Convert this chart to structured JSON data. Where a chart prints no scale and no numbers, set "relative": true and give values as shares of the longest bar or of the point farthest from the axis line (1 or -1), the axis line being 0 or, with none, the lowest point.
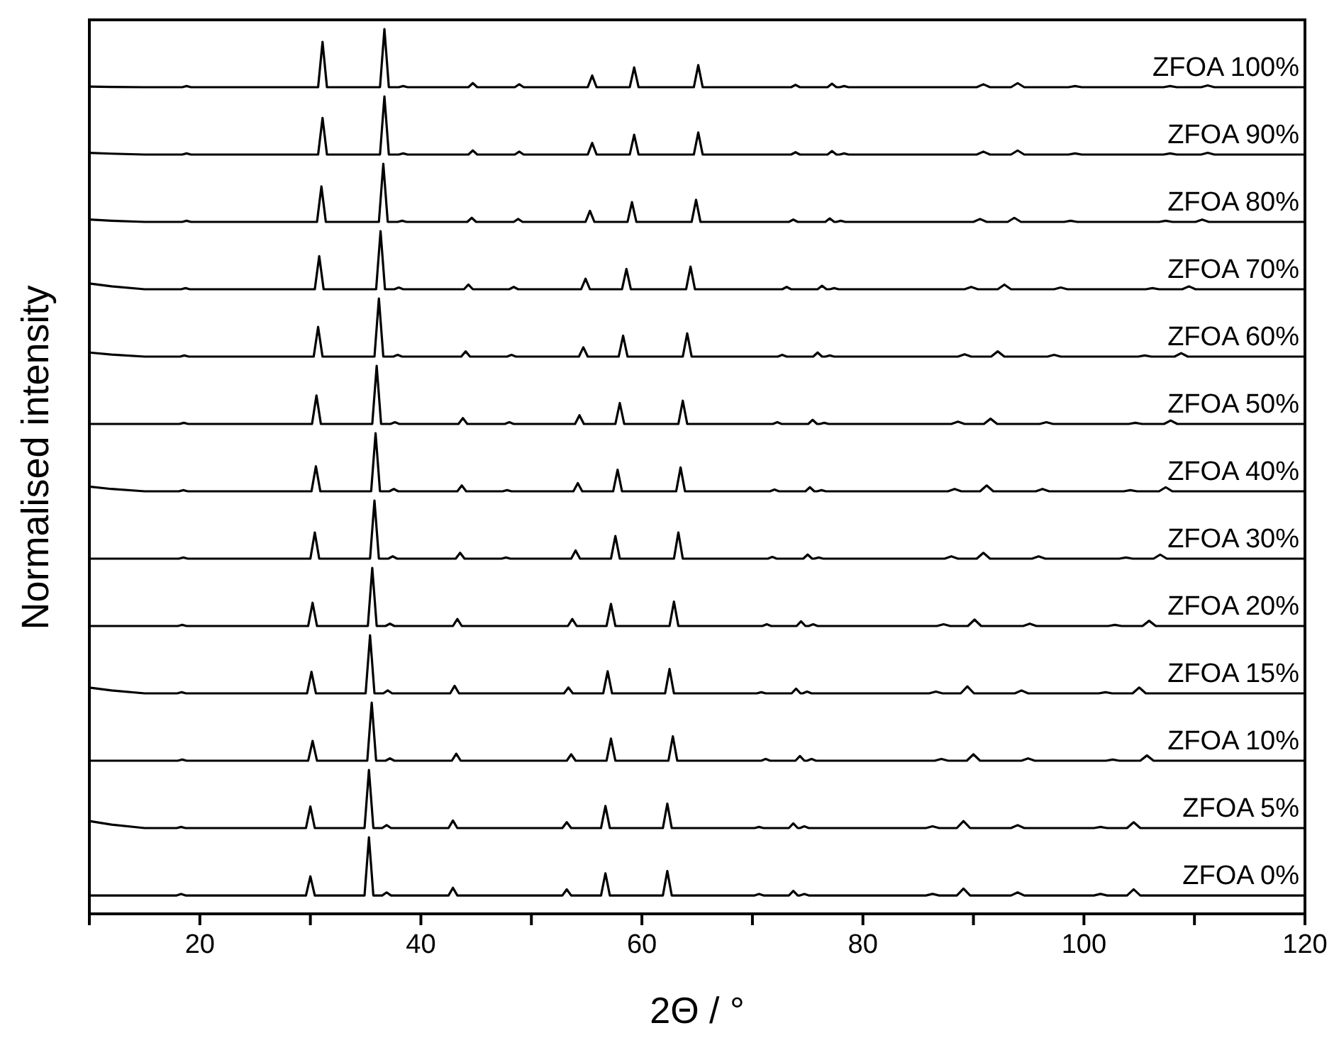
{
  "chart_data": [
    {
      "type": "line",
      "relative": true,
      "xlim": [
        10,
        120
      ],
      "tick_labels": false,
      "series": [
        {
          "name": "ZFOA 100%",
          "color": "#000000",
          "x": [
            10,
            12,
            15,
            18.4,
            18.8,
            19.2,
            30.7,
            31.1,
            31.5,
            36.3,
            36.7,
            37.1,
            38.0,
            38.4,
            38.8,
            44.3,
            44.7,
            45.1,
            48.5,
            48.9,
            49.3,
            55.1,
            55.5,
            55.9,
            58.9,
            59.3,
            59.7,
            64.7,
            65.1,
            65.5,
            73.5,
            73.9,
            74.3,
            76.8,
            77.2,
            77.6,
            77.9,
            78.3,
            78.7,
            90.3,
            90.9,
            91.5,
            93.4,
            94.0,
            94.6,
            98.6,
            99.2,
            99.8,
            107.2,
            107.8,
            108.4,
            110.6,
            111.2,
            111.8,
            120
          ],
          "values": [
            0.01,
            0.005,
            0,
            0,
            0.02,
            0,
            0,
            0.78,
            0,
            0,
            1,
            0,
            0,
            0.02,
            0,
            0,
            0.07,
            0,
            0,
            0.05,
            0,
            0,
            0.2,
            0,
            0,
            0.34,
            0,
            0,
            0.38,
            0,
            0,
            0.04,
            0,
            0,
            0.06,
            0,
            0,
            0.02,
            0,
            0,
            0.05,
            0,
            0,
            0.07,
            0,
            0,
            0.02,
            0,
            0,
            0.02,
            0,
            0,
            0.03,
            0,
            0
          ]
        }
      ]
    },
    {
      "type": "line",
      "relative": true,
      "xlim": [
        10,
        120
      ],
      "tick_labels": false,
      "series": [
        {
          "name": "ZFOA 90%",
          "color": "#000000",
          "x": [
            10,
            12,
            15,
            18.4,
            18.8,
            19.2,
            30.7,
            31.1,
            31.5,
            36.3,
            36.7,
            37.1,
            38.0,
            38.4,
            38.8,
            44.3,
            44.7,
            45.1,
            48.5,
            48.9,
            49.3,
            55.1,
            55.5,
            55.9,
            58.9,
            59.3,
            59.7,
            64.7,
            65.1,
            65.5,
            73.5,
            73.9,
            74.3,
            76.8,
            77.2,
            77.6,
            77.9,
            78.3,
            78.7,
            90.3,
            90.9,
            91.5,
            93.4,
            94.0,
            94.6,
            98.6,
            99.2,
            99.8,
            107.2,
            107.8,
            108.4,
            110.6,
            111.2,
            111.8,
            120
          ],
          "values": [
            0.03,
            0.015,
            0,
            0,
            0.02,
            0,
            0,
            0.63,
            0,
            0,
            1,
            0,
            0,
            0.02,
            0,
            0,
            0.07,
            0,
            0,
            0.05,
            0,
            0,
            0.2,
            0,
            0,
            0.34,
            0,
            0,
            0.38,
            0,
            0,
            0.04,
            0,
            0,
            0.06,
            0,
            0,
            0.02,
            0,
            0,
            0.05,
            0,
            0,
            0.07,
            0,
            0,
            0.02,
            0,
            0,
            0.02,
            0,
            0,
            0.03,
            0,
            0
          ]
        }
      ]
    },
    {
      "type": "line",
      "relative": true,
      "xlim": [
        10,
        120
      ],
      "tick_labels": false,
      "series": [
        {
          "name": "ZFOA 80%",
          "color": "#000000",
          "x": [
            10,
            12,
            15,
            18.4,
            18.8,
            19.2,
            30.6,
            31.0,
            31.4,
            36.2,
            36.6,
            37.0,
            37.9,
            38.3,
            38.7,
            44.2,
            44.6,
            45.0,
            48.4,
            48.8,
            49.2,
            54.9,
            55.3,
            55.7,
            58.7,
            59.1,
            59.5,
            64.5,
            64.9,
            65.3,
            73.3,
            73.7,
            74.1,
            76.6,
            77.0,
            77.4,
            77.6,
            78.0,
            78.4,
            90.0,
            90.6,
            91.2,
            93.1,
            93.7,
            94.3,
            98.2,
            98.8,
            99.4,
            106.8,
            107.4,
            108.0,
            110.1,
            110.7,
            111.3,
            120
          ],
          "values": [
            0.04,
            0.02,
            0,
            0,
            0.02,
            0,
            0,
            0.61,
            0,
            0,
            1,
            0,
            0,
            0.02,
            0,
            0,
            0.07,
            0,
            0,
            0.05,
            0,
            0,
            0.19,
            0,
            0,
            0.34,
            0,
            0,
            0.38,
            0,
            0,
            0.04,
            0,
            0,
            0.06,
            0,
            0,
            0.02,
            0,
            0,
            0.05,
            0,
            0,
            0.07,
            0,
            0,
            0.02,
            0,
            0,
            0.02,
            0,
            0,
            0.04,
            0,
            0
          ]
        }
      ]
    },
    {
      "type": "line",
      "relative": true,
      "xlim": [
        10,
        120
      ],
      "tick_labels": false,
      "series": [
        {
          "name": "ZFOA 70%",
          "color": "#000000",
          "x": [
            10,
            12,
            15,
            18.3,
            18.7,
            19.1,
            30.4,
            30.8,
            31.2,
            35.95,
            36.35,
            36.75,
            37.6,
            38.0,
            38.4,
            43.9,
            44.3,
            44.7,
            48.0,
            48.4,
            48.8,
            54.5,
            54.9,
            55.3,
            58.2,
            58.6,
            59.0,
            64.0,
            64.4,
            64.8,
            72.7,
            73.1,
            73.5,
            75.9,
            76.3,
            76.7,
            77.0,
            77.4,
            77.8,
            89.2,
            89.8,
            90.4,
            92.2,
            92.8,
            93.4,
            97.3,
            97.9,
            98.5,
            105.6,
            106.2,
            106.8,
            108.9,
            109.5,
            110.1,
            120
          ],
          "values": [
            0.1,
            0.05,
            0,
            0,
            0.02,
            0,
            0,
            0.57,
            0,
            0,
            1,
            0,
            0,
            0.03,
            0,
            0,
            0.08,
            0,
            0,
            0.04,
            0,
            0,
            0.18,
            0,
            0,
            0.35,
            0,
            0,
            0.39,
            0,
            0,
            0.04,
            0,
            0,
            0.06,
            0,
            0,
            0.02,
            0,
            0,
            0.04,
            0,
            0,
            0.08,
            0,
            0,
            0.03,
            0,
            0,
            0.02,
            0,
            0,
            0.05,
            0,
            0
          ]
        }
      ]
    },
    {
      "type": "line",
      "relative": true,
      "xlim": [
        10,
        120
      ],
      "tick_labels": false,
      "series": [
        {
          "name": "ZFOA 60%",
          "color": "#000000",
          "x": [
            10,
            12,
            15,
            18.2,
            18.6,
            19.0,
            30.3,
            30.7,
            31.1,
            35.8,
            36.2,
            36.6,
            37.5,
            37.9,
            38.3,
            43.65,
            44.05,
            44.45,
            47.8,
            48.2,
            48.6,
            54.3,
            54.7,
            55.1,
            57.9,
            58.3,
            58.7,
            63.7,
            64.1,
            64.5,
            72.3,
            72.7,
            73.1,
            75.5,
            75.9,
            76.3,
            76.6,
            77.0,
            77.4,
            88.6,
            89.2,
            89.8,
            91.6,
            92.2,
            92.8,
            96.7,
            97.3,
            97.9,
            104.9,
            105.5,
            106.1,
            108.2,
            108.8,
            109.4,
            120
          ],
          "values": [
            0.07,
            0.035,
            0,
            0,
            0.02,
            0,
            0,
            0.51,
            0,
            0,
            1,
            0,
            0,
            0.03,
            0,
            0,
            0.09,
            0,
            0,
            0.03,
            0,
            0,
            0.16,
            0,
            0,
            0.36,
            0,
            0,
            0.4,
            0,
            0,
            0.03,
            0,
            0,
            0.07,
            0,
            0,
            0.02,
            0,
            0,
            0.04,
            0,
            0,
            0.09,
            0,
            0,
            0.03,
            0,
            0,
            0.02,
            0,
            0,
            0.06,
            0,
            0
          ]
        }
      ]
    },
    {
      "type": "line",
      "relative": true,
      "xlim": [
        10,
        120
      ],
      "tick_labels": false,
      "series": [
        {
          "name": "ZFOA 50%",
          "color": "#000000",
          "x": [
            10,
            18.15,
            18.55,
            18.95,
            30.15,
            30.55,
            30.95,
            35.6,
            36.0,
            36.4,
            37.25,
            37.65,
            38.05,
            43.4,
            43.8,
            44.2,
            47.6,
            48.0,
            48.4,
            53.95,
            54.35,
            54.75,
            57.6,
            58.0,
            58.4,
            63.3,
            63.7,
            64.1,
            71.85,
            72.25,
            72.65,
            75.05,
            75.45,
            75.85,
            76.1,
            76.5,
            76.9,
            88.0,
            88.6,
            89.2,
            90.95,
            91.55,
            92.15,
            96.0,
            96.6,
            97.2,
            104.05,
            104.65,
            105.25,
            107.25,
            107.85,
            108.45,
            120
          ],
          "values": [
            0,
            0,
            0.02,
            0,
            0,
            0.49,
            0,
            0,
            1,
            0,
            0,
            0.03,
            0,
            0,
            0.1,
            0,
            0,
            0.03,
            0,
            0,
            0.15,
            0,
            0,
            0.36,
            0,
            0,
            0.4,
            0,
            0,
            0.03,
            0,
            0,
            0.07,
            0,
            0,
            0.02,
            0,
            0,
            0.04,
            0,
            0,
            0.09,
            0,
            0,
            0.03,
            0,
            0,
            0.02,
            0,
            0,
            0.06,
            0,
            0
          ]
        }
      ]
    },
    {
      "type": "line",
      "relative": true,
      "xlim": [
        10,
        120
      ],
      "tick_labels": false,
      "ylabel": "Normalised intensity",
      "series": [
        {
          "name": "ZFOA 40%",
          "color": "#000000",
          "x": [
            10,
            12,
            15,
            18.1,
            18.5,
            18.9,
            30.1,
            30.5,
            30.9,
            35.5,
            35.9,
            36.3,
            37.15,
            37.55,
            37.95,
            43.3,
            43.7,
            44.1,
            47.4,
            47.8,
            48.2,
            53.8,
            54.2,
            54.6,
            57.4,
            57.8,
            58.2,
            63.1,
            63.5,
            63.9,
            71.6,
            72.0,
            72.4,
            74.8,
            75.2,
            75.6,
            75.85,
            76.25,
            76.65,
            87.7,
            88.3,
            88.9,
            90.6,
            91.2,
            91.8,
            95.65,
            96.25,
            96.85,
            103.6,
            104.2,
            104.8,
            106.8,
            107.4,
            108.0,
            120
          ],
          "values": [
            0.08,
            0.04,
            0,
            0,
            0.02,
            0,
            0,
            0.43,
            0,
            0,
            1,
            0,
            0,
            0.04,
            0,
            0,
            0.1,
            0,
            0,
            0.02,
            0,
            0,
            0.14,
            0,
            0,
            0.37,
            0,
            0,
            0.41,
            0,
            0,
            0.03,
            0,
            0,
            0.07,
            0,
            0,
            0.02,
            0,
            0,
            0.04,
            0,
            0,
            0.1,
            0,
            0,
            0.04,
            0,
            0,
            0.02,
            0,
            0,
            0.07,
            0,
            0
          ]
        }
      ]
    },
    {
      "type": "line",
      "relative": true,
      "xlim": [
        10,
        120
      ],
      "tick_labels": false,
      "series": [
        {
          "name": "ZFOA 30%",
          "color": "#000000",
          "x": [
            10,
            18.1,
            18.5,
            18.9,
            30.0,
            30.4,
            30.8,
            35.4,
            35.8,
            36.2,
            37.05,
            37.45,
            37.85,
            43.15,
            43.55,
            43.95,
            47.3,
            47.7,
            48.1,
            53.6,
            54.0,
            54.4,
            57.2,
            57.6,
            58.0,
            62.9,
            63.3,
            63.7,
            71.4,
            71.8,
            72.2,
            74.6,
            75.0,
            75.4,
            75.6,
            76.0,
            76.4,
            87.4,
            88.0,
            88.6,
            90.3,
            90.9,
            91.5,
            95.3,
            95.9,
            96.5,
            103.2,
            103.8,
            104.4,
            106.3,
            106.9,
            107.5,
            120
          ],
          "values": [
            0,
            0,
            0.02,
            0,
            0,
            0.45,
            0,
            0,
            1,
            0,
            0,
            0.04,
            0,
            0,
            0.1,
            0,
            0,
            0.02,
            0,
            0,
            0.14,
            0,
            0,
            0.39,
            0,
            0,
            0.45,
            0,
            0,
            0.03,
            0,
            0,
            0.07,
            0,
            0,
            0.02,
            0,
            0,
            0.04,
            0,
            0,
            0.1,
            0,
            0,
            0.04,
            0,
            0,
            0.02,
            0,
            0,
            0.07,
            0,
            0
          ]
        }
      ]
    },
    {
      "type": "line",
      "relative": true,
      "xlim": [
        10,
        120
      ],
      "tick_labels": false,
      "series": [
        {
          "name": "ZFOA 20%",
          "color": "#000000",
          "x": [
            10,
            18.0,
            18.4,
            18.8,
            29.8,
            30.2,
            30.6,
            35.2,
            35.6,
            36.0,
            36.8,
            37.2,
            37.6,
            42.9,
            43.3,
            43.7,
            53.3,
            53.7,
            54.1,
            56.8,
            57.2,
            57.6,
            62.5,
            62.9,
            63.3,
            70.9,
            71.3,
            71.7,
            74.0,
            74.4,
            74.8,
            75.1,
            75.5,
            75.9,
            86.7,
            87.3,
            87.9,
            89.5,
            90.1,
            90.7,
            94.5,
            95.1,
            95.7,
            102.2,
            102.8,
            103.4,
            105.3,
            105.9,
            106.5,
            120
          ],
          "values": [
            0,
            0,
            0.02,
            0,
            0,
            0.4,
            0,
            0,
            1,
            0,
            0,
            0.04,
            0,
            0,
            0.12,
            0,
            0,
            0.12,
            0,
            0,
            0.38,
            0,
            0,
            0.42,
            0,
            0,
            0.03,
            0,
            0,
            0.08,
            0,
            0,
            0.03,
            0,
            0,
            0.03,
            0,
            0,
            0.11,
            0,
            0,
            0.04,
            0,
            0,
            0.02,
            0,
            0,
            0.09,
            0,
            0
          ]
        }
      ]
    },
    {
      "type": "line",
      "relative": true,
      "xlim": [
        10,
        120
      ],
      "tick_labels": false,
      "series": [
        {
          "name": "ZFOA 15%",
          "color": "#000000",
          "x": [
            10,
            12,
            15,
            17.95,
            18.35,
            18.75,
            29.7,
            30.1,
            30.5,
            35.0,
            35.4,
            35.8,
            36.6,
            37.0,
            37.4,
            42.65,
            43.05,
            43.45,
            52.95,
            53.35,
            53.75,
            56.5,
            56.9,
            57.3,
            62.1,
            62.5,
            62.9,
            70.4,
            70.8,
            71.2,
            73.55,
            73.95,
            74.35,
            74.55,
            74.95,
            75.35,
            86.0,
            86.6,
            87.2,
            88.85,
            89.45,
            90.05,
            93.75,
            94.35,
            94.95,
            101.35,
            101.95,
            102.55,
            104.4,
            105.0,
            105.6,
            120
          ],
          "values": [
            0.1,
            0.05,
            0,
            0,
            0.02,
            0,
            0,
            0.37,
            0,
            0,
            1,
            0,
            0,
            0.05,
            0,
            0,
            0.13,
            0,
            0,
            0.1,
            0,
            0,
            0.38,
            0,
            0,
            0.42,
            0,
            0,
            0.02,
            0,
            0,
            0.08,
            0,
            0,
            0.03,
            0,
            0,
            0.03,
            0,
            0,
            0.12,
            0,
            0,
            0.05,
            0,
            0,
            0.02,
            0,
            0,
            0.1,
            0,
            0
          ]
        }
      ]
    },
    {
      "type": "line",
      "relative": true,
      "xlim": [
        10,
        120
      ],
      "tick_labels": false,
      "series": [
        {
          "name": "ZFOA 10%",
          "color": "#000000",
          "x": [
            10,
            18.0,
            18.4,
            18.8,
            29.8,
            30.2,
            30.6,
            35.15,
            35.55,
            35.95,
            36.8,
            37.2,
            37.6,
            42.8,
            43.2,
            43.6,
            53.2,
            53.6,
            54.0,
            56.8,
            57.2,
            57.6,
            62.4,
            62.8,
            63.2,
            70.8,
            71.2,
            71.6,
            73.9,
            74.3,
            74.7,
            74.95,
            75.35,
            75.75,
            86.5,
            87.1,
            87.7,
            89.4,
            90.0,
            90.6,
            94.35,
            94.95,
            95.55,
            102.0,
            102.6,
            103.2,
            105.1,
            105.7,
            106.3,
            120
          ],
          "values": [
            0,
            0,
            0.02,
            0,
            0,
            0.34,
            0,
            0,
            1,
            0,
            0,
            0.04,
            0,
            0,
            0.12,
            0,
            0,
            0.11,
            0,
            0,
            0.38,
            0,
            0,
            0.42,
            0,
            0,
            0.03,
            0,
            0,
            0.08,
            0,
            0,
            0.03,
            0,
            0,
            0.03,
            0,
            0,
            0.11,
            0,
            0,
            0.04,
            0,
            0,
            0.02,
            0,
            0,
            0.09,
            0,
            0
          ]
        }
      ]
    },
    {
      "type": "line",
      "relative": true,
      "xlim": [
        10,
        120
      ],
      "tick_labels": false,
      "series": [
        {
          "name": "ZFOA 5%",
          "color": "#000000",
          "x": [
            10,
            12,
            15,
            17.9,
            18.3,
            18.7,
            29.6,
            30.0,
            30.4,
            34.9,
            35.3,
            35.7,
            36.5,
            36.9,
            37.3,
            42.5,
            42.9,
            43.3,
            52.8,
            53.2,
            53.6,
            56.3,
            56.7,
            57.1,
            61.9,
            62.3,
            62.7,
            70.2,
            70.6,
            71.0,
            73.3,
            73.7,
            74.1,
            74.3,
            74.7,
            75.1,
            85.7,
            86.3,
            86.9,
            88.5,
            89.1,
            89.7,
            93.4,
            94.0,
            94.6,
            100.9,
            101.5,
            102.1,
            103.9,
            104.5,
            105.1,
            120
          ],
          "values": [
            0.12,
            0.06,
            0,
            0,
            0.02,
            0,
            0,
            0.37,
            0,
            0,
            1,
            0,
            0,
            0.05,
            0,
            0,
            0.13,
            0,
            0,
            0.1,
            0,
            0,
            0.38,
            0,
            0,
            0.42,
            0,
            0,
            0.02,
            0,
            0,
            0.08,
            0,
            0,
            0.03,
            0,
            0,
            0.03,
            0,
            0,
            0.12,
            0,
            0,
            0.05,
            0,
            0,
            0.02,
            0,
            0,
            0.1,
            0,
            0
          ]
        }
      ]
    },
    {
      "type": "line",
      "relative": true,
      "xlim": [
        10,
        120
      ],
      "tick_labels": "x",
      "xlabel": "2Θ / °",
      "xticks": [
        {
          "value": 10,
          "label": null
        },
        20,
        {
          "value": 30,
          "label": null
        },
        40,
        {
          "value": 50,
          "label": null
        },
        60,
        {
          "value": 70,
          "label": null
        },
        80,
        {
          "value": 90,
          "label": null
        },
        100,
        {
          "value": 110,
          "label": null
        },
        120
      ],
      "series": [
        {
          "name": "ZFOA 0%",
          "color": "#000000",
          "x": [
            10,
            17.9,
            18.3,
            18.7,
            29.6,
            30.0,
            30.4,
            34.9,
            35.3,
            35.7,
            36.5,
            36.9,
            37.3,
            42.5,
            42.9,
            43.3,
            52.8,
            53.2,
            53.6,
            56.3,
            56.7,
            57.1,
            61.9,
            62.3,
            62.7,
            70.2,
            70.6,
            71.0,
            73.3,
            73.7,
            74.1,
            74.3,
            74.7,
            75.1,
            85.7,
            86.3,
            86.9,
            88.5,
            89.1,
            89.7,
            93.4,
            94.0,
            94.6,
            100.9,
            101.5,
            102.1,
            103.9,
            104.5,
            105.1,
            120
          ],
          "values": [
            0.24,
            0.24,
            0.26,
            0.24,
            0.24,
            0.49,
            0.24,
            0.24,
            1,
            0.24,
            0.24,
            0.28,
            0.24,
            0.24,
            0.34,
            0.24,
            0.24,
            0.32,
            0.24,
            0.24,
            0.53,
            0.24,
            0.24,
            0.56,
            0.24,
            0.24,
            0.26,
            0.24,
            0.24,
            0.3,
            0.24,
            0.24,
            0.26,
            0.24,
            0.24,
            0.26,
            0.24,
            0.24,
            0.33,
            0.24,
            0.24,
            0.28,
            0.24,
            0.24,
            0.26,
            0.24,
            0.24,
            0.32,
            0.24,
            0.24
          ]
        }
      ]
    }
  ]
}
